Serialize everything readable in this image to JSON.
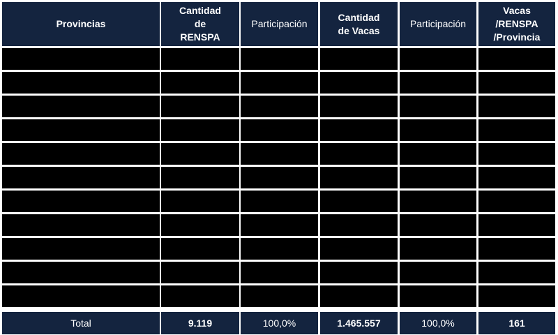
{
  "header": {
    "provincias": "Provincias",
    "cantidad_renspa": "Cantidad de RENSPA",
    "participacion_1": "Participación",
    "cantidad_vacas": "Cantidad de Vacas",
    "participacion_2": "Participación",
    "vacas_renspa": "Vacas /RENSPA /Provincia"
  },
  "rows": [
    {
      "provincia": "",
      "renspa": "",
      "part1": "",
      "vacas": "",
      "part2": "",
      "ratio": ""
    },
    {
      "provincia": "",
      "renspa": "",
      "part1": "",
      "vacas": "",
      "part2": "",
      "ratio": ""
    },
    {
      "provincia": "",
      "renspa": "",
      "part1": "",
      "vacas": "",
      "part2": "",
      "ratio": ""
    },
    {
      "provincia": "",
      "renspa": "",
      "part1": "",
      "vacas": "",
      "part2": "",
      "ratio": ""
    },
    {
      "provincia": "",
      "renspa": "",
      "part1": "",
      "vacas": "",
      "part2": "",
      "ratio": ""
    },
    {
      "provincia": "",
      "renspa": "",
      "part1": "",
      "vacas": "",
      "part2": "",
      "ratio": ""
    },
    {
      "provincia": "",
      "renspa": "",
      "part1": "",
      "vacas": "",
      "part2": "",
      "ratio": ""
    },
    {
      "provincia": "",
      "renspa": "",
      "part1": "",
      "vacas": "",
      "part2": "",
      "ratio": ""
    },
    {
      "provincia": "",
      "renspa": "",
      "part1": "",
      "vacas": "",
      "part2": "",
      "ratio": ""
    },
    {
      "provincia": "",
      "renspa": "",
      "part1": "",
      "vacas": "",
      "part2": "",
      "ratio": ""
    },
    {
      "provincia": "",
      "renspa": "",
      "part1": "",
      "vacas": "",
      "part2": "",
      "ratio": ""
    }
  ],
  "total": {
    "label": "Total",
    "renspa": "9.119",
    "part1": "100,0%",
    "vacas": "1.465.557",
    "part2": "100,0%",
    "ratio": "161"
  },
  "colors": {
    "header_bg": "#14243f",
    "row_bg": "#000000",
    "grid": "#ffffff",
    "text_header": "#ffffff"
  }
}
